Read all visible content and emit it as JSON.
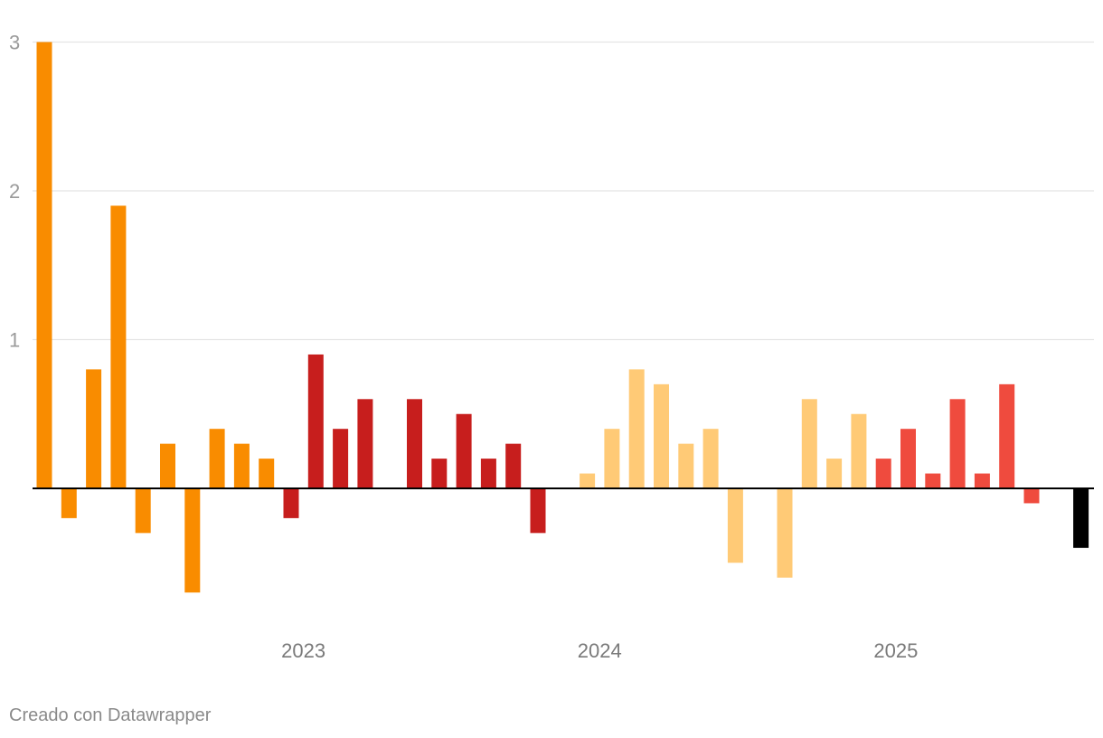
{
  "chart_data": {
    "type": "bar",
    "title": "",
    "xlabel": "",
    "ylabel": "",
    "ylim": [
      -1,
      3
    ],
    "y_ticks": [
      1,
      2,
      3
    ],
    "x_tick_labels": [
      {
        "label": "2023",
        "index": 10.5
      },
      {
        "label": "2024",
        "index": 22.5
      },
      {
        "label": "2025",
        "index": 34.5
      }
    ],
    "grid": true,
    "legend": "none",
    "values": [
      3.0,
      -0.2,
      0.8,
      1.9,
      -0.3,
      0.3,
      -0.7,
      0.4,
      0.3,
      0.2,
      -0.2,
      0.9,
      0.4,
      0.6,
      null,
      0.6,
      0.2,
      0.5,
      0.2,
      0.3,
      -0.3,
      null,
      0.1,
      0.4,
      0.8,
      0.7,
      0.3,
      0.4,
      -0.5,
      null,
      -0.6,
      0.6,
      0.2,
      0.5,
      0.2,
      0.4,
      0.1,
      0.6,
      0.1,
      0.7,
      -0.1,
      null,
      -0.4
    ],
    "bar_colors": [
      "#f98c00",
      "#f98c00",
      "#f98c00",
      "#f98c00",
      "#f98c00",
      "#f98c00",
      "#f98c00",
      "#f98c00",
      "#f98c00",
      "#f98c00",
      "#c71e1d",
      "#c71e1d",
      "#c71e1d",
      "#c71e1d",
      "#c71e1d",
      "#c71e1d",
      "#c71e1d",
      "#c71e1d",
      "#c71e1d",
      "#c71e1d",
      "#c71e1d",
      "#ffca76",
      "#ffca76",
      "#ffca76",
      "#ffca76",
      "#ffca76",
      "#ffca76",
      "#ffca76",
      "#ffca76",
      "#ffca76",
      "#ffca76",
      "#ffca76",
      "#ffca76",
      "#ffca76",
      "#ef4b3e",
      "#ef4b3e",
      "#ef4b3e",
      "#ef4b3e",
      "#ef4b3e",
      "#ef4b3e",
      "#ef4b3e",
      "#ef4b3e",
      "#000000"
    ]
  },
  "footer": {
    "credit": "Creado con Datawrapper"
  }
}
